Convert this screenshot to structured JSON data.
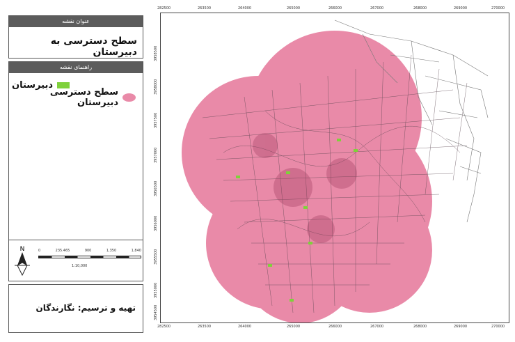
{
  "legend": {
    "title_header": "عنوان نقشه",
    "map_title": "سطح دسترسی به دبیرستان",
    "guide_header": "راهنمای نقشه",
    "items": [
      {
        "label": "دبیرستان",
        "color": "#7fd13b",
        "symbol": "school-point"
      },
      {
        "label": "سطح دسترسی دبیرستان",
        "color": "#e98aa8",
        "symbol": "service-area"
      }
    ]
  },
  "scale": {
    "ticks": [
      "0",
      "235.465",
      "900",
      "1,350",
      "1,840"
    ],
    "ratio": "1:10,000",
    "north_label": "N"
  },
  "credit": "تهیه و ترسیم: نگارندگان",
  "axes": {
    "top_ticks": [
      "282500",
      "263500",
      "264000",
      "265000",
      "266000",
      "267000",
      "268000",
      "269000",
      "270000"
    ],
    "bottom_ticks": [
      "282500",
      "263500",
      "264000",
      "265000",
      "266000",
      "267000",
      "268000",
      "269000",
      "270000"
    ],
    "left_ticks": [
      "3958500",
      "3958000",
      "3957500",
      "3957000",
      "3956500",
      "3956000",
      "3955500",
      "3955000",
      "3954500"
    ]
  },
  "colors": {
    "service_area": "#e98aa8",
    "school": "#7fd13b",
    "road": "#555555"
  }
}
